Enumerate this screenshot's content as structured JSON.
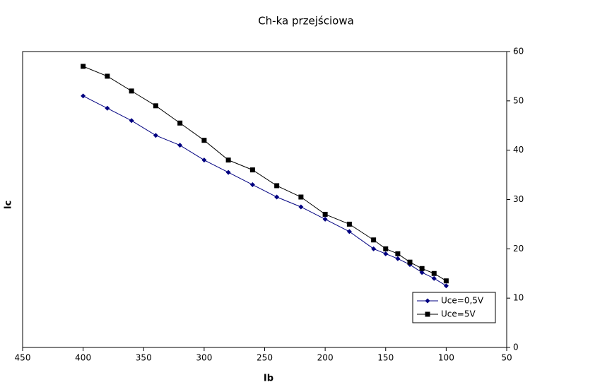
{
  "chart_data": {
    "type": "line",
    "title": "Ch-ka przejściowa",
    "x_label": "Ib",
    "y_label": "Ic",
    "x": [
      400,
      380,
      360,
      340,
      320,
      300,
      280,
      260,
      240,
      220,
      200,
      180,
      160,
      150,
      140,
      130,
      120,
      110,
      100
    ],
    "series": [
      {
        "name": "Uce=0,5V",
        "color": "#000080",
        "marker": "diamond",
        "values": [
          51,
          48.5,
          46,
          43,
          41,
          38,
          35.5,
          33,
          30.5,
          28.5,
          26,
          23.5,
          20,
          19,
          18,
          16.8,
          15.2,
          14,
          12.5
        ]
      },
      {
        "name": "Uce=5V",
        "color": "#000000",
        "marker": "square",
        "values": [
          57,
          55,
          52,
          49,
          45.5,
          42,
          38,
          36,
          32.8,
          30.5,
          27,
          25,
          21.8,
          20,
          19,
          17.3,
          16,
          15,
          13.5
        ]
      }
    ],
    "xlim": [
      450,
      50
    ],
    "xticks": [
      450,
      400,
      350,
      300,
      250,
      200,
      150,
      100,
      50
    ],
    "ylim": [
      0,
      60
    ],
    "yticks": [
      0,
      10,
      20,
      30,
      40,
      50,
      60
    ],
    "y_axis_side": "right",
    "legend": "bottom-right"
  }
}
